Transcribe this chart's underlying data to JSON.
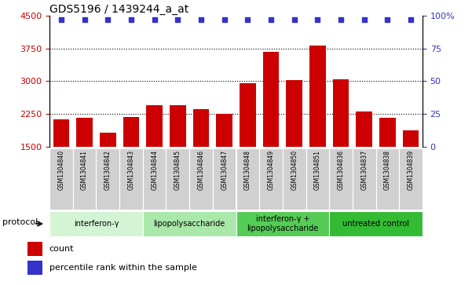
{
  "title": "GDS5196 / 1439244_a_at",
  "samples": [
    "GSM1304840",
    "GSM1304841",
    "GSM1304842",
    "GSM1304843",
    "GSM1304844",
    "GSM1304845",
    "GSM1304846",
    "GSM1304847",
    "GSM1304848",
    "GSM1304849",
    "GSM1304850",
    "GSM1304851",
    "GSM1304836",
    "GSM1304837",
    "GSM1304838",
    "GSM1304839"
  ],
  "counts": [
    2130,
    2170,
    1830,
    2180,
    2450,
    2450,
    2360,
    2260,
    2960,
    3680,
    3020,
    3820,
    3040,
    2310,
    2170,
    1870
  ],
  "percentiles": [
    97,
    97,
    97,
    97,
    97,
    97,
    97,
    97,
    97,
    97,
    97,
    97,
    97,
    97,
    97,
    97
  ],
  "ylim_left": [
    1500,
    4500
  ],
  "ylim_right": [
    0,
    100
  ],
  "yticks_left": [
    1500,
    2250,
    3000,
    3750,
    4500
  ],
  "yticks_right": [
    0,
    25,
    50,
    75,
    100
  ],
  "bar_color": "#cc0000",
  "dot_color": "#3333cc",
  "groups": [
    {
      "label": "interferon-γ",
      "start": 0,
      "end": 4,
      "color": "#d4f5d4"
    },
    {
      "label": "lipopolysaccharide",
      "start": 4,
      "end": 8,
      "color": "#aae8aa"
    },
    {
      "label": "interferon-γ +\nlipopolysaccharide",
      "start": 8,
      "end": 12,
      "color": "#55cc55"
    },
    {
      "label": "untreated control",
      "start": 12,
      "end": 16,
      "color": "#33bb33"
    }
  ],
  "xlabel_protocol": "protocol",
  "tick_label_color_left": "#cc0000",
  "tick_label_color_right": "#3333cc",
  "bar_bottom": 1500,
  "sample_box_color": "#d0d0d0",
  "legend_count_color": "#cc0000",
  "legend_pct_color": "#3333cc"
}
